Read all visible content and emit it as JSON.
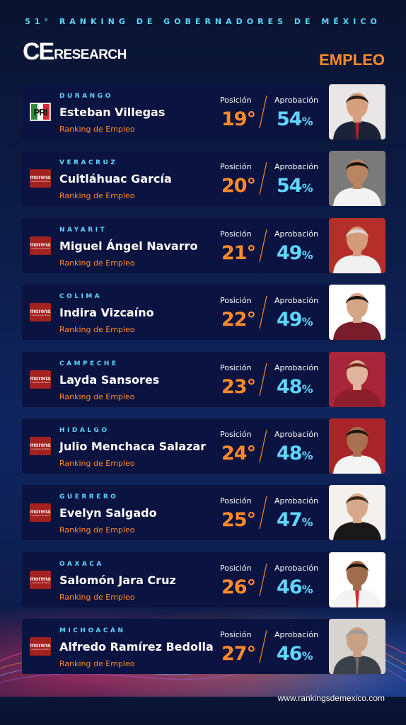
{
  "header": {
    "title": "51° RANKING DE GOBERNADORES DE MÉXICO",
    "logo_ce": "CE",
    "logo_research": "RESEARCH",
    "category": "EMPLEO"
  },
  "labels": {
    "position": "Posición",
    "approval": "Aprobación",
    "ranking": "Ranking de Empleo",
    "percent": "%"
  },
  "colors": {
    "accent_orange": "#ff8a2a",
    "accent_cyan": "#5fd6ff",
    "card_bg": "#0b1340",
    "morena_red": "#a3221f"
  },
  "governors": [
    {
      "state": "DURANGO",
      "name": "Esteban Villegas",
      "party": "pri",
      "party_label": "PRI",
      "position": "19°",
      "approval": "54",
      "photo_bg": "#e8e6e6",
      "suit": "#1d2336",
      "skin": "#d6a07e",
      "hair": "#2a1c14",
      "tie": "#b3232b"
    },
    {
      "state": "VERACRUZ",
      "name": "Cuitláhuac García",
      "party": "morena",
      "party_label": "morena",
      "party_sub": "La esperanza de México",
      "position": "20°",
      "approval": "54",
      "photo_bg": "#7a7a7a",
      "suit": "#f3f3f3",
      "skin": "#b98460",
      "hair": "#1a1410",
      "tie": ""
    },
    {
      "state": "NAYARIT",
      "name": "Miguel Ángel Navarro",
      "party": "morena",
      "party_label": "morena",
      "party_sub": "La esperanza de México",
      "position": "21°",
      "approval": "49",
      "photo_bg": "#b52f2a",
      "suit": "#f0f0f0",
      "skin": "#d39b7c",
      "hair": "#d8d8d8",
      "tie": ""
    },
    {
      "state": "COLIMA",
      "name": "Indira Vizcaíno",
      "party": "morena",
      "party_label": "morena",
      "party_sub": "La esperanza de México",
      "position": "22°",
      "approval": "49",
      "photo_bg": "#ffffff",
      "suit": "#7a1d2a",
      "skin": "#d6a487",
      "hair": "#1a1210",
      "tie": ""
    },
    {
      "state": "CAMPECHE",
      "name": "Layda Sansores",
      "party": "morena",
      "party_label": "morena",
      "party_sub": "La esperanza de México",
      "position": "23°",
      "approval": "48",
      "photo_bg": "#a9253a",
      "suit": "#8d1e2c",
      "skin": "#dfb39c",
      "hair": "#7a2a1e",
      "tie": ""
    },
    {
      "state": "HIDALGO",
      "name": "Julio Menchaca Salazar",
      "party": "morena",
      "party_label": "morena",
      "party_sub": "La esperanza de México",
      "position": "24°",
      "approval": "48",
      "photo_bg": "#a8262a",
      "suit": "#f4f4f4",
      "skin": "#a97052",
      "hair": "#1c1410",
      "tie": ""
    },
    {
      "state": "GUERRERO",
      "name": "Evelyn Salgado",
      "party": "morena",
      "party_label": "morena",
      "party_sub": "La esperanza de México",
      "position": "25°",
      "approval": "47",
      "photo_bg": "#f4f0ee",
      "suit": "#181818",
      "skin": "#d7a78a",
      "hair": "#3a2518",
      "tie": ""
    },
    {
      "state": "OAXACA",
      "name": "Salomón Jara Cruz",
      "party": "morena",
      "party_label": "morena",
      "party_sub": "La esperanza de México",
      "position": "26°",
      "approval": "46",
      "photo_bg": "#ffffff",
      "suit": "#f3f3f3",
      "skin": "#a06c4c",
      "hair": "#1a1410",
      "tie": "#c83030"
    },
    {
      "state": "MICHOACÁN",
      "name": "Alfredo Ramírez Bedolla",
      "party": "morena",
      "party_label": "morena",
      "party_sub": "La esperanza de México",
      "position": "27°",
      "approval": "46",
      "photo_bg": "#d7d3cf",
      "suit": "#3c4048",
      "skin": "#caa084",
      "hair": "#9a9a9a",
      "tie": "#6a6a6a"
    }
  ],
  "footer": {
    "url": "www.rankingsdemexico.com"
  }
}
